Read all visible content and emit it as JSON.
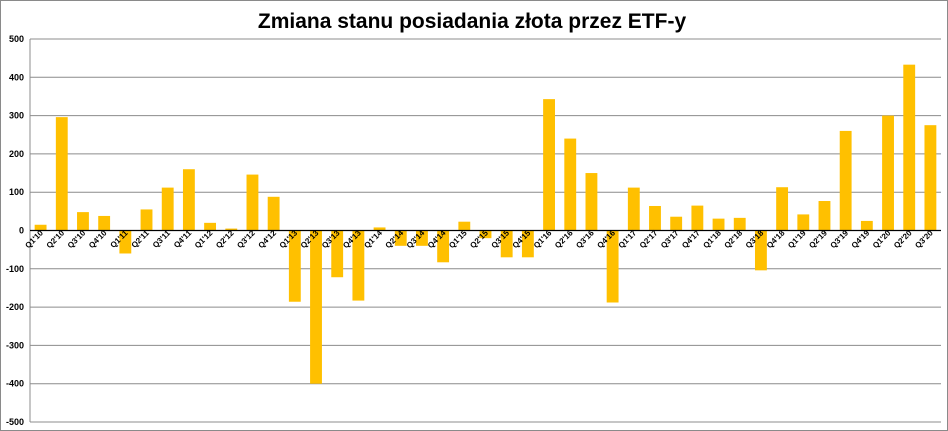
{
  "chart_data": {
    "type": "bar",
    "title": "Zmiana stanu posiadania złota przez ETF-y",
    "xlabel": "",
    "ylabel": "",
    "ylim": [
      -500,
      500
    ],
    "yticks": [
      500,
      400,
      300,
      200,
      100,
      0,
      -100,
      -200,
      -300,
      -400,
      -500
    ],
    "grid": true,
    "bar_color": "#FFC000",
    "categories": [
      "Q1'10",
      "Q2'10",
      "Q3'10",
      "Q4'10",
      "Q1'11",
      "Q2'11",
      "Q3'11",
      "Q4'11",
      "Q1'12",
      "Q2'12",
      "Q3'12",
      "Q4'12",
      "Q1'13",
      "Q2'13",
      "Q3'13",
      "Q4'13",
      "Q1'14",
      "Q2'14",
      "Q3'14",
      "Q4'14",
      "Q1'15",
      "Q2'15",
      "Q3'15",
      "Q4'15",
      "Q1'16",
      "Q2'16",
      "Q3'16",
      "Q4'16",
      "Q1'17",
      "Q2'17",
      "Q3'17",
      "Q4'17",
      "Q1'18",
      "Q2'18",
      "Q3'18",
      "Q4'18",
      "Q1'19",
      "Q2'19",
      "Q3'19",
      "Q4'19",
      "Q1'20",
      "Q2'20",
      "Q3'20"
    ],
    "values": [
      15,
      296,
      48,
      38,
      -60,
      55,
      112,
      160,
      20,
      5,
      146,
      88,
      -186,
      -400,
      -122,
      -183,
      8,
      -40,
      -40,
      -83,
      23,
      -20,
      -70,
      -70,
      343,
      240,
      150,
      -188,
      112,
      64,
      36,
      65,
      31,
      33,
      -104,
      113,
      42,
      77,
      260,
      25,
      300,
      433,
      275
    ]
  }
}
